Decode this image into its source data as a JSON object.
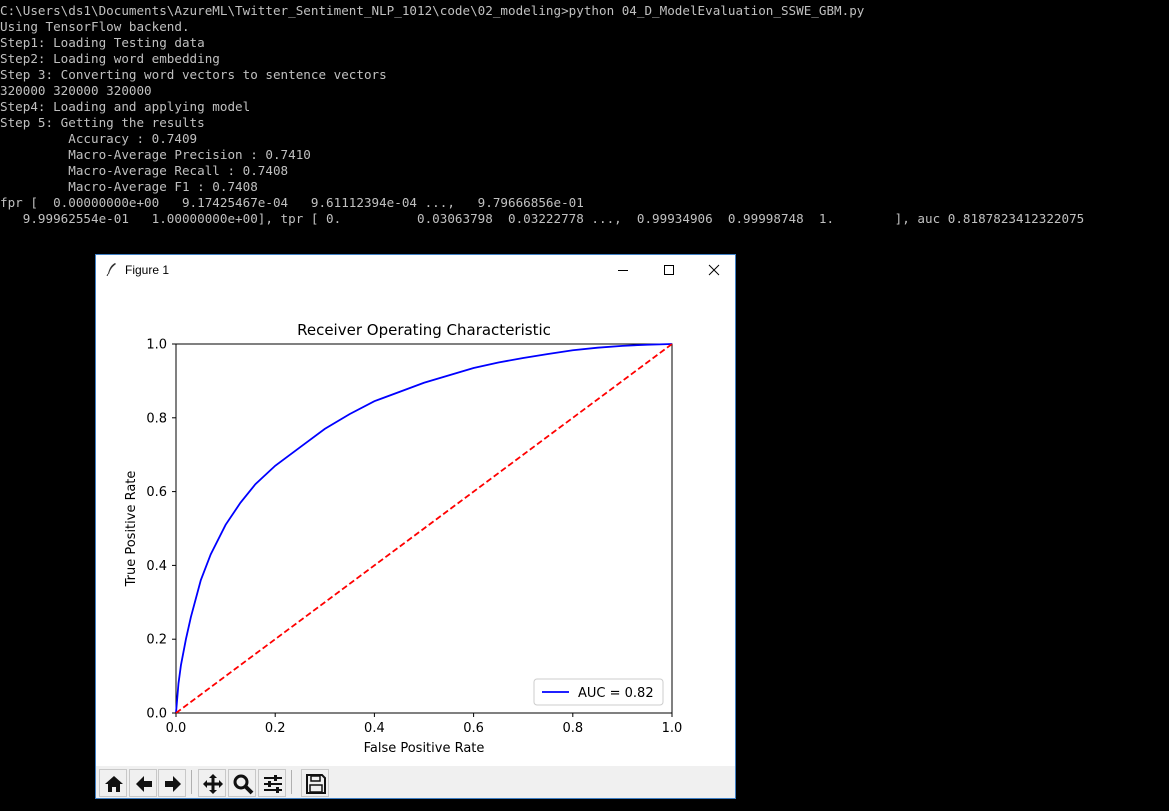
{
  "console": {
    "lines": [
      "C:\\Users\\ds1\\Documents\\AzureML\\Twitter_Sentiment_NLP_1012\\code\\02_modeling>python 04_D_ModelEvaluation_SSWE_GBM.py",
      "Using TensorFlow backend.",
      "Step1: Loading Testing data",
      "Step2: Loading word embedding",
      "Step 3: Converting word vectors to sentence vectors",
      "320000 320000 320000",
      "Step4: Loading and applying model",
      "Step 5: Getting the results",
      "         Accuracy : 0.7409",
      "         Macro-Average Precision : 0.7410",
      "         Macro-Average Recall : 0.7408",
      "         Macro-Average F1 : 0.7408",
      "fpr [  0.00000000e+00   9.17425467e-04   9.61112394e-04 ...,   9.79666856e-01",
      "   9.99962554e-01   1.00000000e+00], tpr [ 0.          0.03063798  0.03222778 ...,  0.99934906  0.99998748  1.        ], auc 0.8187823412322075"
    ]
  },
  "window": {
    "title": "Figure 1",
    "icons": {
      "app": "feather-icon",
      "minimize": "minimize-icon",
      "maximize": "maximize-icon",
      "close": "close-icon"
    }
  },
  "chart_data": {
    "type": "line",
    "title": "Receiver Operating Characteristic",
    "xlabel": "False Positive Rate",
    "ylabel": "True Positive Rate",
    "xlim": [
      0,
      1
    ],
    "ylim": [
      0,
      1
    ],
    "xticks": [
      "0.0",
      "0.2",
      "0.4",
      "0.6",
      "0.8",
      "1.0"
    ],
    "yticks": [
      "0.0",
      "0.2",
      "0.4",
      "0.6",
      "0.8",
      "1.0"
    ],
    "grid": false,
    "legend_position": "lower-right",
    "series": [
      {
        "name": "AUC = 0.82",
        "color": "#0000ff",
        "style": "solid",
        "x": [
          0,
          0.005,
          0.01,
          0.02,
          0.03,
          0.05,
          0.07,
          0.1,
          0.13,
          0.16,
          0.2,
          0.25,
          0.3,
          0.35,
          0.4,
          0.45,
          0.5,
          0.55,
          0.6,
          0.65,
          0.7,
          0.75,
          0.8,
          0.85,
          0.9,
          0.95,
          1.0
        ],
        "y": [
          0,
          0.08,
          0.13,
          0.2,
          0.26,
          0.36,
          0.43,
          0.51,
          0.57,
          0.62,
          0.67,
          0.72,
          0.77,
          0.81,
          0.845,
          0.87,
          0.895,
          0.915,
          0.935,
          0.95,
          0.962,
          0.973,
          0.983,
          0.99,
          0.995,
          0.998,
          1.0
        ]
      },
      {
        "name": "",
        "color": "#ff0000",
        "style": "dashed",
        "x": [
          0,
          1
        ],
        "y": [
          0,
          1
        ]
      }
    ]
  },
  "toolbar": {
    "buttons": [
      {
        "name": "home-button",
        "icon": "home-icon"
      },
      {
        "name": "back-button",
        "icon": "arrow-left-icon"
      },
      {
        "name": "forward-button",
        "icon": "arrow-right-icon"
      },
      {
        "name": "pan-button",
        "icon": "move-icon"
      },
      {
        "name": "zoom-button",
        "icon": "magnifier-icon"
      },
      {
        "name": "configure-subplots-button",
        "icon": "sliders-icon"
      },
      {
        "name": "save-button",
        "icon": "floppy-disk-icon"
      }
    ]
  }
}
